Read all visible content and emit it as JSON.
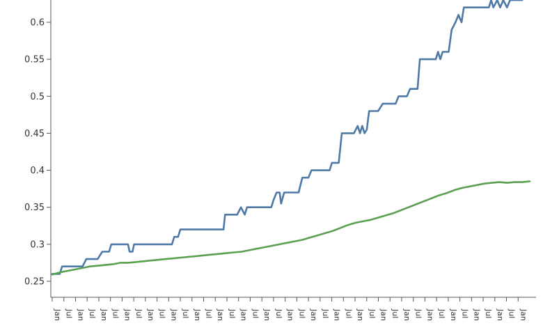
{
  "chart_data": {
    "type": "line",
    "title": "",
    "xlabel": "",
    "ylabel": "",
    "ylim": [
      0.245,
      0.63
    ],
    "yticks": [
      "0.25",
      "0.3",
      "0.35",
      "0.4",
      "0.45",
      "0.5",
      "0.55",
      "0.6"
    ],
    "x_tick_labels": [
      "Jan",
      "Jul",
      "Jan",
      "Jul",
      "Jan",
      "Jul",
      "Jan",
      "Jul",
      "Jan",
      "Jul",
      "Jan",
      "Jul",
      "Jan",
      "Jul",
      "Jan",
      "Jul",
      "Jan",
      "Jul",
      "Jan",
      "Jul",
      "Jan",
      "Jul",
      "Jan",
      "Jul",
      "Jan",
      "Jul",
      "Jan",
      "Jul",
      "Jan",
      "Jul",
      "Jan",
      "Jul",
      "Jan",
      "Jul",
      "Jan",
      "Jul",
      "Jan",
      "Jul",
      "Jan",
      "Jul",
      "Jan"
    ],
    "grid": false,
    "legend": "none",
    "series": [
      {
        "color": "#4e79a7",
        "points": [
          [
            0,
            0.26
          ],
          [
            1,
            0.26
          ],
          [
            1.3,
            0.27
          ],
          [
            2.5,
            0.27
          ],
          [
            4,
            0.27
          ],
          [
            4.5,
            0.28
          ],
          [
            6,
            0.28
          ],
          [
            6.6,
            0.29
          ],
          [
            7.5,
            0.29
          ],
          [
            7.8,
            0.3
          ],
          [
            10,
            0.3
          ],
          [
            10.2,
            0.29
          ],
          [
            10.6,
            0.29
          ],
          [
            10.8,
            0.3
          ],
          [
            13,
            0.3
          ],
          [
            15.8,
            0.3
          ],
          [
            16.1,
            0.31
          ],
          [
            16.6,
            0.31
          ],
          [
            16.9,
            0.32
          ],
          [
            18,
            0.32
          ],
          [
            21,
            0.32
          ],
          [
            22.6,
            0.32
          ],
          [
            22.8,
            0.34
          ],
          [
            24.4,
            0.34
          ],
          [
            24.9,
            0.35
          ],
          [
            25.4,
            0.34
          ],
          [
            25.7,
            0.35
          ],
          [
            27,
            0.35
          ],
          [
            28.9,
            0.35
          ],
          [
            29.2,
            0.36
          ],
          [
            29.6,
            0.37
          ],
          [
            30,
            0.37
          ],
          [
            30.2,
            0.355
          ],
          [
            30.6,
            0.37
          ],
          [
            32.5,
            0.37
          ],
          [
            33,
            0.39
          ],
          [
            33.8,
            0.39
          ],
          [
            34.2,
            0.4
          ],
          [
            36,
            0.4
          ],
          [
            36.6,
            0.4
          ],
          [
            36.9,
            0.41
          ],
          [
            37.8,
            0.41
          ],
          [
            38.2,
            0.45
          ],
          [
            39.8,
            0.45
          ],
          [
            40.3,
            0.46
          ],
          [
            40.6,
            0.45
          ],
          [
            40.9,
            0.46
          ],
          [
            41.2,
            0.45
          ],
          [
            41.5,
            0.455
          ],
          [
            41.8,
            0.48
          ],
          [
            43,
            0.48
          ],
          [
            43.6,
            0.49
          ],
          [
            45.3,
            0.49
          ],
          [
            45.7,
            0.5
          ],
          [
            46.8,
            0.5
          ],
          [
            47.2,
            0.51
          ],
          [
            48.2,
            0.51
          ],
          [
            48.5,
            0.55
          ],
          [
            50.6,
            0.55
          ],
          [
            50.9,
            0.56
          ],
          [
            51.2,
            0.55
          ],
          [
            51.5,
            0.56
          ],
          [
            52.3,
            0.56
          ],
          [
            52.7,
            0.59
          ],
          [
            53.2,
            0.6
          ],
          [
            53.6,
            0.61
          ],
          [
            54,
            0.6
          ],
          [
            54.3,
            0.62
          ],
          [
            56,
            0.62
          ],
          [
            57.6,
            0.62
          ],
          [
            57.9,
            0.63
          ],
          [
            58.2,
            0.62
          ],
          [
            58.7,
            0.63
          ],
          [
            59.1,
            0.62
          ],
          [
            59.5,
            0.63
          ],
          [
            60,
            0.62
          ],
          [
            60.4,
            0.63
          ],
          [
            62,
            0.63
          ]
        ]
      },
      {
        "color": "#59a14f",
        "points": [
          [
            0,
            0.259
          ],
          [
            1,
            0.262
          ],
          [
            2,
            0.264
          ],
          [
            3,
            0.266
          ],
          [
            4,
            0.268
          ],
          [
            5,
            0.27
          ],
          [
            6,
            0.271
          ],
          [
            7,
            0.272
          ],
          [
            8,
            0.273
          ],
          [
            9,
            0.275
          ],
          [
            10,
            0.275
          ],
          [
            11,
            0.276
          ],
          [
            12,
            0.277
          ],
          [
            13,
            0.278
          ],
          [
            14,
            0.279
          ],
          [
            15,
            0.28
          ],
          [
            16,
            0.281
          ],
          [
            17,
            0.282
          ],
          [
            18,
            0.283
          ],
          [
            19,
            0.284
          ],
          [
            20,
            0.285
          ],
          [
            21,
            0.286
          ],
          [
            22,
            0.287
          ],
          [
            23,
            0.288
          ],
          [
            24,
            0.289
          ],
          [
            25,
            0.29
          ],
          [
            26,
            0.292
          ],
          [
            27,
            0.294
          ],
          [
            28,
            0.296
          ],
          [
            29,
            0.298
          ],
          [
            30,
            0.3
          ],
          [
            31,
            0.302
          ],
          [
            32,
            0.304
          ],
          [
            33,
            0.306
          ],
          [
            34,
            0.309
          ],
          [
            35,
            0.312
          ],
          [
            36,
            0.315
          ],
          [
            37,
            0.318
          ],
          [
            38,
            0.322
          ],
          [
            39,
            0.326
          ],
          [
            40,
            0.329
          ],
          [
            41,
            0.331
          ],
          [
            42,
            0.333
          ],
          [
            43,
            0.336
          ],
          [
            44,
            0.339
          ],
          [
            45,
            0.342
          ],
          [
            46,
            0.346
          ],
          [
            47,
            0.35
          ],
          [
            48,
            0.354
          ],
          [
            49,
            0.358
          ],
          [
            50,
            0.362
          ],
          [
            51,
            0.366
          ],
          [
            52,
            0.369
          ],
          [
            53,
            0.373
          ],
          [
            54,
            0.376
          ],
          [
            55,
            0.378
          ],
          [
            56,
            0.38
          ],
          [
            57,
            0.382
          ],
          [
            58,
            0.383
          ],
          [
            59,
            0.384
          ],
          [
            60,
            0.383
          ],
          [
            61,
            0.384
          ],
          [
            62,
            0.384
          ],
          [
            63,
            0.385
          ]
        ]
      }
    ]
  }
}
